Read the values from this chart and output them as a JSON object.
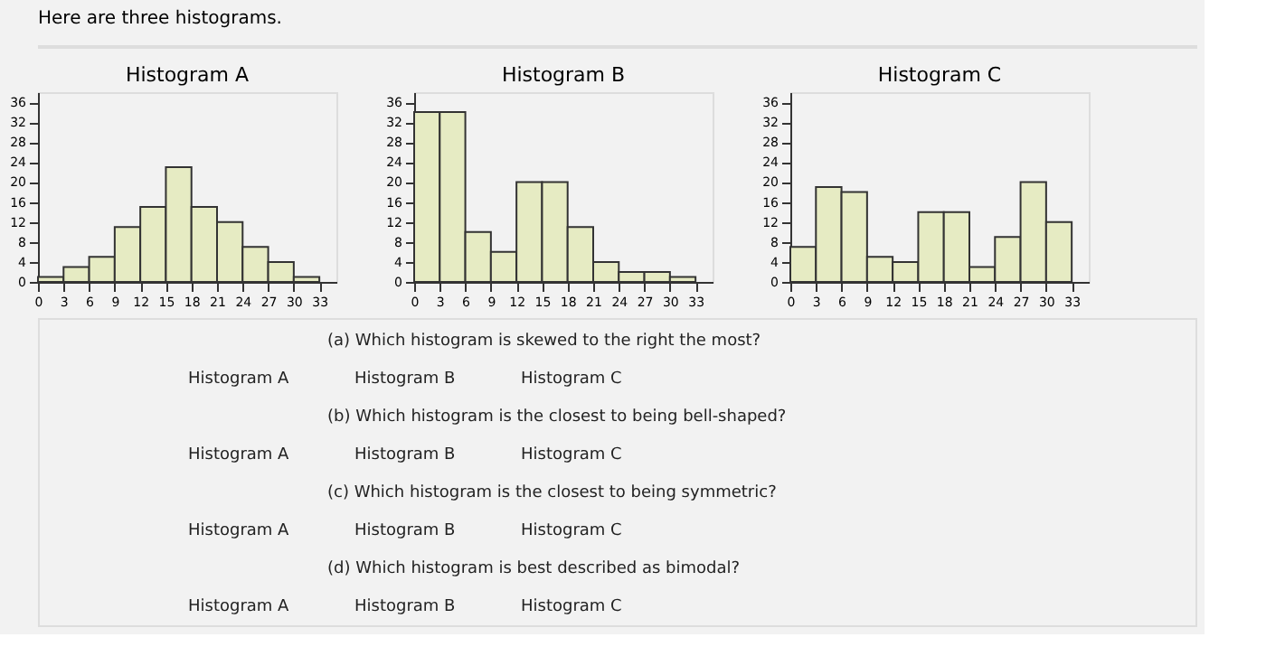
{
  "chart_data": [
    {
      "type": "other",
      "title": "Here are three histograms."
    },
    {
      "type": "histogram",
      "title": "Histogram A",
      "bins": [
        0,
        3,
        6,
        9,
        12,
        15,
        18,
        21,
        24,
        27,
        30,
        33
      ],
      "values": [
        1,
        3,
        5,
        11,
        15,
        23,
        15,
        12,
        7,
        4,
        1
      ],
      "color": "#e6ebc3",
      "xlim": [
        0,
        35
      ],
      "xticks": [
        0,
        3,
        6,
        9,
        12,
        15,
        18,
        21,
        24,
        27,
        30,
        33
      ],
      "ylim": [
        0,
        38
      ],
      "yticks": [
        0,
        4,
        8,
        12,
        16,
        20,
        24,
        28,
        32,
        36
      ],
      "grid": false
    },
    {
      "type": "histogram",
      "title": "Histogram B",
      "bins": [
        0,
        3,
        6,
        9,
        12,
        15,
        18,
        21,
        24,
        27,
        30,
        33
      ],
      "values": [
        34,
        34,
        10,
        6,
        20,
        20,
        11,
        4,
        2,
        2,
        1
      ],
      "color": "#e6ebc3",
      "xlim": [
        0,
        35
      ],
      "xticks": [
        0,
        3,
        6,
        9,
        12,
        15,
        18,
        21,
        24,
        27,
        30,
        33
      ],
      "ylim": [
        0,
        38
      ],
      "yticks": [
        0,
        4,
        8,
        12,
        16,
        20,
        24,
        28,
        32,
        36
      ],
      "grid": false
    },
    {
      "type": "histogram",
      "title": "Histogram C",
      "bins": [
        0,
        3,
        6,
        9,
        12,
        15,
        18,
        21,
        24,
        27,
        30,
        33
      ],
      "values": [
        7,
        19,
        18,
        5,
        4,
        14,
        14,
        3,
        9,
        20,
        12
      ],
      "color": "#e6ebc3",
      "xlim": [
        0,
        35
      ],
      "xticks": [
        0,
        3,
        6,
        9,
        12,
        15,
        18,
        21,
        24,
        27,
        30,
        33
      ],
      "ylim": [
        0,
        38
      ],
      "yticks": [
        0,
        4,
        8,
        12,
        16,
        20,
        24,
        28,
        32,
        36
      ],
      "grid": false
    },
    {
      "type": "other",
      "annotations": [
        "(a) Which histogram is skewed to the right the most?",
        "Histogram A",
        "Histogram B",
        "Histogram C",
        "(b) Which histogram is the closest to being bell-shaped?",
        "Histogram A",
        "Histogram B",
        "Histogram C",
        "(c) Which histogram is the closest to being symmetric?",
        "Histogram A",
        "Histogram B",
        "Histogram C",
        "(d) Which histogram is best described as bimodal?",
        "Histogram A",
        "Histogram B",
        "Histogram C"
      ]
    }
  ]
}
